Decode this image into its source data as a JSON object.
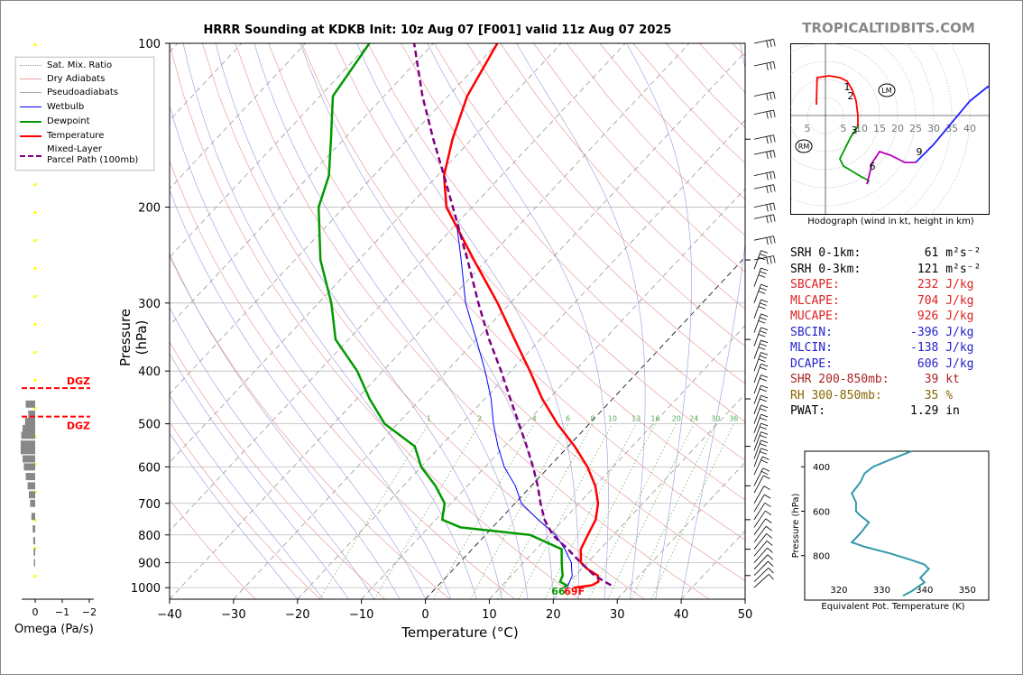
{
  "title": "HRRR Sounding at KDKB Init: 10z Aug 07 [F001] valid 11z Aug 07 2025",
  "brand": "TROPICALTIDBITS.COM",
  "x_axis_label": "Temperature (°C)",
  "y_axis_label": "Pressure (hPa)",
  "legend": [
    {
      "label": "Sat. Mix. Ratio",
      "style": "dotted",
      "color": "#999999"
    },
    {
      "label": "Dry Adiabats",
      "style": "solid",
      "color": "#e8a0a0"
    },
    {
      "label": "Pseudoadiabats",
      "style": "solid",
      "color": "#aaaaaa"
    },
    {
      "label": "Wetbulb",
      "style": "solid",
      "color": "#0000ff"
    },
    {
      "label": "Dewpoint",
      "style": "solid",
      "color": "#009900"
    },
    {
      "label": "Temperature",
      "style": "solid",
      "color": "#ff0000"
    },
    {
      "label": "Mixed-Layer\nParcel Path (100mb)",
      "style": "dashed",
      "color": "#800080"
    }
  ],
  "stats": [
    {
      "label": "SRH 0-1km:",
      "value": "61",
      "unit": "m²s⁻²",
      "color": "#000000"
    },
    {
      "label": "SRH 0-3km:",
      "value": "121",
      "unit": "m²s⁻²",
      "color": "#000000"
    },
    {
      "label": "SBCAPE:",
      "value": "232",
      "unit": "J/kg",
      "color": "#dd2222"
    },
    {
      "label": "MLCAPE:",
      "value": "704",
      "unit": "J/kg",
      "color": "#dd2222"
    },
    {
      "label": "MUCAPE:",
      "value": "926",
      "unit": "J/kg",
      "color": "#dd2222"
    },
    {
      "label": "SBCIN:",
      "value": "-396",
      "unit": "J/kg",
      "color": "#2222cc"
    },
    {
      "label": "MLCIN:",
      "value": "-138",
      "unit": "J/kg",
      "color": "#2222cc"
    },
    {
      "label": "DCAPE:",
      "value": "606",
      "unit": "J/kg",
      "color": "#2222cc"
    },
    {
      "label": "SHR 200-850mb:",
      "value": "39",
      "unit": "kt",
      "color": "#aa2222"
    },
    {
      "label": "RH 300-850mb:",
      "value": "35",
      "unit": "%",
      "color": "#886600"
    },
    {
      "label": "PWAT:",
      "value": "1.29",
      "unit": "in",
      "color": "#000000"
    }
  ],
  "surface": {
    "dewpoint_label": "66",
    "temp_label": "69F"
  },
  "dgz_label": "DGZ",
  "hodograph": {
    "caption": "Hodograph (wind in kt, height in km)",
    "rings": [
      5,
      10,
      15,
      20,
      25,
      30,
      35,
      40
    ],
    "left_tick": "5",
    "markers": [
      "RM",
      "LM"
    ],
    "height_labels": [
      "1",
      "2",
      "3",
      "6",
      "9"
    ]
  },
  "ept": {
    "caption": "Equivalent Pot. Temperature (K)",
    "ylabel": "Pressure (hPa)",
    "x_ticks": [
      "320",
      "330",
      "340",
      "350"
    ],
    "y_ticks": [
      "400",
      "600",
      "800"
    ]
  },
  "omega": {
    "label": "Omega (Pa/s)",
    "ticks": [
      "0",
      "−1",
      "−2"
    ]
  },
  "chart_data": {
    "type": "line",
    "xlim": [
      -40,
      50
    ],
    "ylim_hpa": [
      1050,
      100
    ],
    "y_scale": "log",
    "x_ticks": [
      -40,
      -30,
      -20,
      -10,
      0,
      10,
      20,
      30,
      40,
      50
    ],
    "y_ticks": [
      100,
      200,
      300,
      400,
      500,
      600,
      700,
      800,
      900,
      1000
    ],
    "mixing_ratio_labels": [
      "1",
      "2",
      "4",
      "6",
      "8",
      "10",
      "13",
      "16",
      "20",
      "24",
      "30",
      "36"
    ],
    "series": [
      {
        "name": "Temperature",
        "color": "#ff0000",
        "points": [
          [
            1000,
            21.5
          ],
          [
            990,
            24
          ],
          [
            975,
            24.5
          ],
          [
            950,
            23.5
          ],
          [
            925,
            21
          ],
          [
            900,
            19
          ],
          [
            850,
            17
          ],
          [
            800,
            16
          ],
          [
            750,
            15
          ],
          [
            700,
            13
          ],
          [
            650,
            10
          ],
          [
            600,
            6
          ],
          [
            550,
            1
          ],
          [
            500,
            -5
          ],
          [
            450,
            -11
          ],
          [
            400,
            -17
          ],
          [
            350,
            -24
          ],
          [
            300,
            -32
          ],
          [
            250,
            -42
          ],
          [
            200,
            -54
          ],
          [
            175,
            -59
          ],
          [
            150,
            -63
          ],
          [
            125,
            -67
          ],
          [
            100,
            -70
          ]
        ]
      },
      {
        "name": "Dewpoint",
        "color": "#009900",
        "points": [
          [
            1000,
            20
          ],
          [
            990,
            20
          ],
          [
            975,
            18.5
          ],
          [
            950,
            18
          ],
          [
            925,
            17
          ],
          [
            900,
            16
          ],
          [
            850,
            14
          ],
          [
            800,
            7
          ],
          [
            775,
            -5
          ],
          [
            750,
            -9
          ],
          [
            700,
            -11
          ],
          [
            650,
            -15
          ],
          [
            600,
            -20
          ],
          [
            550,
            -24
          ],
          [
            500,
            -32
          ],
          [
            450,
            -38
          ],
          [
            400,
            -44
          ],
          [
            350,
            -52
          ],
          [
            300,
            -58
          ],
          [
            250,
            -66
          ],
          [
            200,
            -74
          ],
          [
            175,
            -77
          ],
          [
            150,
            -82
          ],
          [
            125,
            -88
          ],
          [
            100,
            -90
          ]
        ]
      },
      {
        "name": "Wetbulb",
        "color": "#0000ff",
        "points": [
          [
            1000,
            20.5
          ],
          [
            975,
            20
          ],
          [
            950,
            19.5
          ],
          [
            925,
            18.5
          ],
          [
            900,
            17.5
          ],
          [
            850,
            14.5
          ],
          [
            800,
            11
          ],
          [
            750,
            6
          ],
          [
            700,
            1
          ],
          [
            650,
            -2.5
          ],
          [
            600,
            -7
          ],
          [
            550,
            -11
          ],
          [
            500,
            -15
          ],
          [
            450,
            -19
          ],
          [
            400,
            -24
          ],
          [
            350,
            -30
          ],
          [
            300,
            -37
          ],
          [
            250,
            -44
          ],
          [
            220,
            -49
          ]
        ]
      },
      {
        "name": "Mixed-Layer Parcel Path (100mb)",
        "color": "#800080",
        "dashed": true,
        "points": [
          [
            990,
            27
          ],
          [
            975,
            25.5
          ],
          [
            950,
            23
          ],
          [
            925,
            21
          ],
          [
            900,
            19
          ],
          [
            875,
            17
          ],
          [
            850,
            15
          ],
          [
            800,
            10.5
          ],
          [
            750,
            7
          ],
          [
            700,
            4
          ],
          [
            650,
            1
          ],
          [
            600,
            -2.5
          ],
          [
            550,
            -6.5
          ],
          [
            500,
            -11
          ],
          [
            450,
            -16
          ],
          [
            400,
            -21.5
          ],
          [
            350,
            -28
          ],
          [
            300,
            -35
          ],
          [
            250,
            -43
          ],
          [
            200,
            -53
          ],
          [
            175,
            -59
          ],
          [
            150,
            -66
          ],
          [
            125,
            -74
          ],
          [
            100,
            -83
          ]
        ]
      }
    ]
  }
}
